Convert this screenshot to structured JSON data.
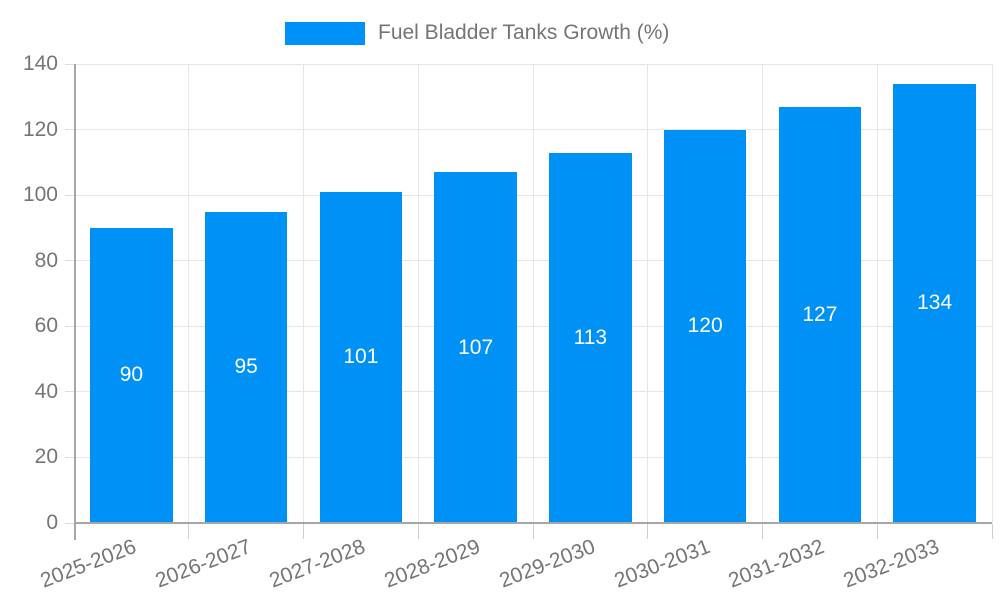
{
  "page": {
    "background": "#ffffff"
  },
  "legend": {
    "label": "Fuel Bladder Tanks Growth (%)"
  },
  "chart_data": {
    "type": "bar",
    "title": "Fuel Bladder Tanks Growth (%)",
    "categories": [
      "2025-2026",
      "2026-2027",
      "2027-2028",
      "2028-2029",
      "2029-2030",
      "2030-2031",
      "2031-2032",
      "2032-2033"
    ],
    "values": [
      90,
      95,
      101,
      107,
      113,
      120,
      127,
      134
    ],
    "xlabel": "",
    "ylabel": "",
    "ylim": [
      0,
      140
    ],
    "yticks": [
      0,
      20,
      40,
      60,
      80,
      100,
      120,
      140
    ],
    "grid": true,
    "legend_position": "top-center",
    "bar_color": "#0091f7",
    "bar_value_label_color": "#ffffff",
    "axis_text_color": "#757575",
    "gridline_color": "#e6e6e6",
    "axis_line_color": "#a6a6a6"
  }
}
